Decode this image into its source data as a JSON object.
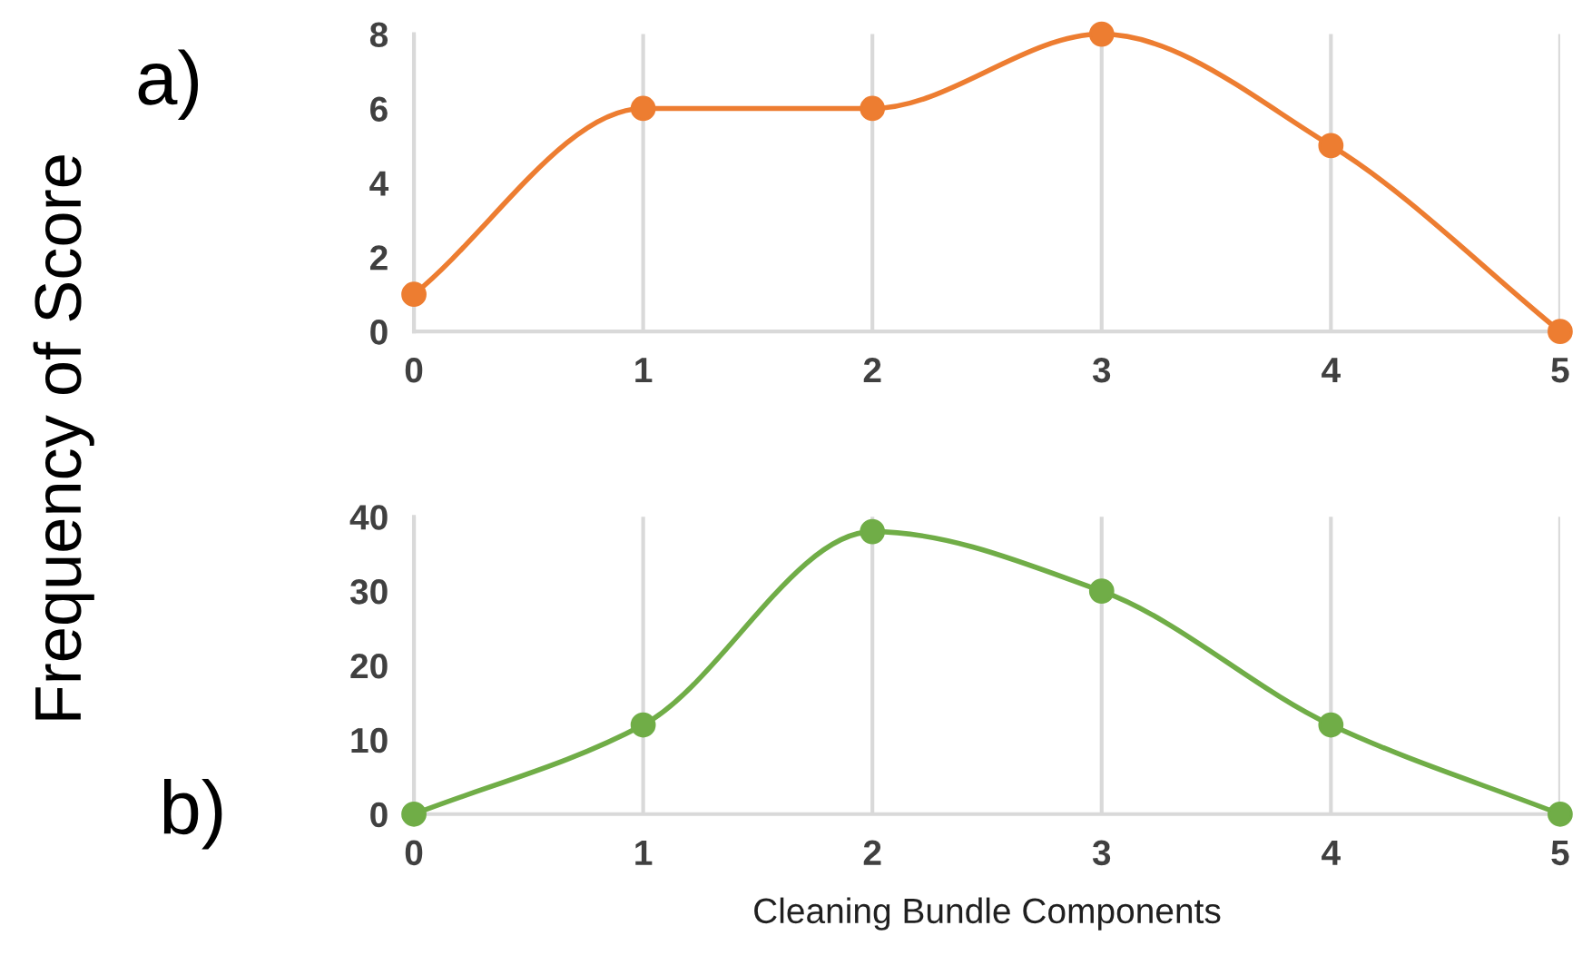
{
  "chart_data": [
    {
      "type": "line",
      "ylabel": "Frequency of Score",
      "annotations": [
        "a)"
      ],
      "x": [
        0,
        1,
        2,
        3,
        4,
        5
      ],
      "xlim": [
        0,
        5
      ],
      "xticks": [
        0,
        1,
        2,
        3,
        4,
        5
      ],
      "ylim": [
        0,
        8
      ],
      "yticks": [
        0,
        2,
        4,
        6,
        8
      ],
      "grid": "x",
      "marker": "circle",
      "line_style": "solid",
      "series": [
        {
          "color": "#ed7d31",
          "values": [
            1,
            6,
            6,
            8,
            5,
            0
          ]
        }
      ]
    },
    {
      "type": "line",
      "xlabel": "Cleaning Bundle Components",
      "annotations": [
        "b)"
      ],
      "x": [
        0,
        1,
        2,
        3,
        4,
        5
      ],
      "xlim": [
        0,
        5
      ],
      "xticks": [
        0,
        1,
        2,
        3,
        4,
        5
      ],
      "ylim": [
        0,
        40
      ],
      "yticks": [
        0,
        10,
        20,
        30,
        40
      ],
      "grid": "x",
      "marker": "circle",
      "line_style": "solid",
      "series": [
        {
          "color": "#70ad47",
          "values": [
            0,
            12,
            38,
            30,
            12,
            0
          ]
        }
      ]
    }
  ]
}
